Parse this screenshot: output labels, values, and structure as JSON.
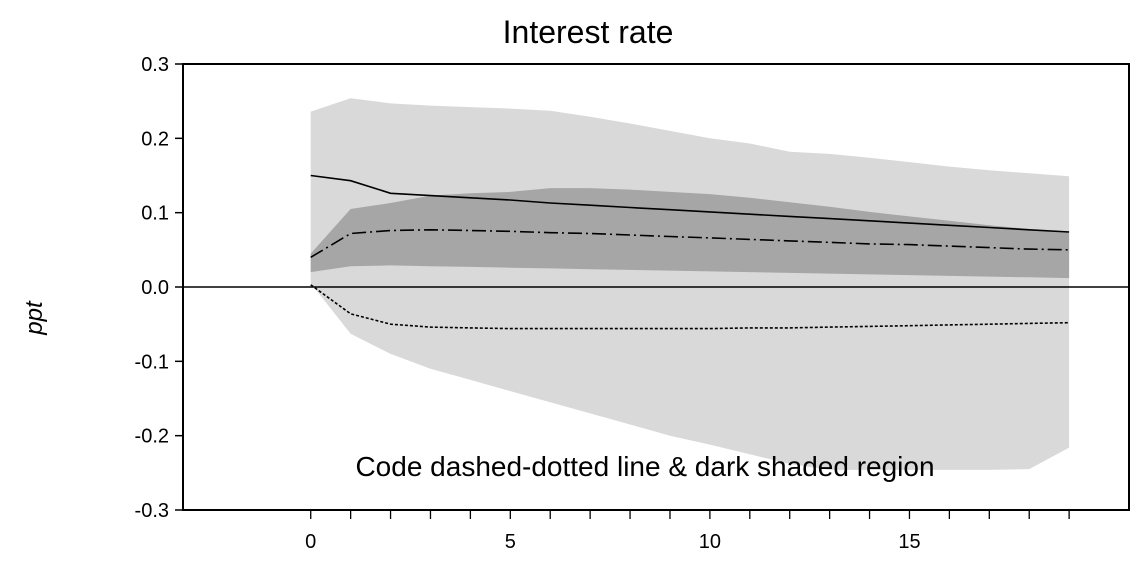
{
  "chart_data": {
    "type": "line",
    "title": "Interest rate",
    "xlabel": "",
    "ylabel": "ppt",
    "xlim": [
      -3.2,
      20.5
    ],
    "ylim": [
      -0.3,
      0.3
    ],
    "x_ticks": [
      0,
      5,
      10,
      15
    ],
    "x_minor_ticks": [
      0,
      1,
      2,
      3,
      4,
      5,
      6,
      7,
      8,
      9,
      10,
      11,
      12,
      13,
      14,
      15,
      16,
      17,
      18,
      19
    ],
    "y_ticks": [
      -0.3,
      -0.2,
      -0.1,
      0.0,
      0.1,
      0.2,
      0.3
    ],
    "y_tick_labels": [
      "-0.3",
      "-0.2",
      "-0.1",
      "0.0",
      "0.1",
      "0.2",
      "0.3"
    ],
    "x_tick_labels": [
      "0",
      "5",
      "10",
      "15"
    ],
    "zero_line": true,
    "grid": false,
    "annotation": "Code dashed-dotted line & dark shaded region",
    "x": [
      0,
      1,
      2,
      3,
      4,
      5,
      6,
      7,
      8,
      9,
      10,
      11,
      12,
      13,
      14,
      15,
      16,
      17,
      18,
      19
    ],
    "light_band": {
      "fill": "#d9d9d9",
      "upper": [
        0.236,
        0.254,
        0.247,
        0.244,
        0.242,
        0.24,
        0.237,
        0.229,
        0.22,
        0.21,
        0.2,
        0.193,
        0.182,
        0.179,
        0.174,
        0.168,
        0.162,
        0.157,
        0.153,
        0.149
      ],
      "lower": [
        0.005,
        -0.063,
        -0.09,
        -0.11,
        -0.125,
        -0.14,
        -0.155,
        -0.17,
        -0.185,
        -0.2,
        -0.212,
        -0.225,
        -0.238,
        -0.246,
        -0.246,
        -0.246,
        -0.246,
        -0.246,
        -0.245,
        -0.216
      ]
    },
    "dark_band": {
      "fill": "#a6a6a6",
      "upper": [
        0.045,
        0.105,
        0.113,
        0.123,
        0.126,
        0.128,
        0.133,
        0.133,
        0.131,
        0.128,
        0.125,
        0.12,
        0.114,
        0.108,
        0.101,
        0.095,
        0.089,
        0.083,
        0.078,
        0.073
      ],
      "lower": [
        0.02,
        0.028,
        0.029,
        0.028,
        0.027,
        0.026,
        0.025,
        0.024,
        0.023,
        0.022,
        0.021,
        0.02,
        0.019,
        0.018,
        0.017,
        0.016,
        0.015,
        0.014,
        0.013,
        0.012
      ]
    },
    "series": [
      {
        "style": "solid",
        "color": "#000000",
        "values": [
          0.15,
          0.143,
          0.126,
          0.123,
          0.12,
          0.117,
          0.113,
          0.11,
          0.107,
          0.104,
          0.101,
          0.098,
          0.095,
          0.092,
          0.089,
          0.086,
          0.083,
          0.08,
          0.077,
          0.074
        ]
      },
      {
        "style": "dashdot",
        "color": "#000000",
        "values": [
          0.04,
          0.072,
          0.076,
          0.077,
          0.076,
          0.075,
          0.073,
          0.072,
          0.07,
          0.068,
          0.066,
          0.064,
          0.062,
          0.06,
          0.058,
          0.057,
          0.055,
          0.053,
          0.051,
          0.05
        ]
      },
      {
        "style": "dotted",
        "color": "#000000",
        "values": [
          0.003,
          -0.036,
          -0.05,
          -0.054,
          -0.055,
          -0.056,
          -0.056,
          -0.056,
          -0.056,
          -0.056,
          -0.056,
          -0.055,
          -0.055,
          -0.054,
          -0.053,
          -0.052,
          -0.051,
          -0.05,
          -0.049,
          -0.048
        ]
      }
    ]
  }
}
